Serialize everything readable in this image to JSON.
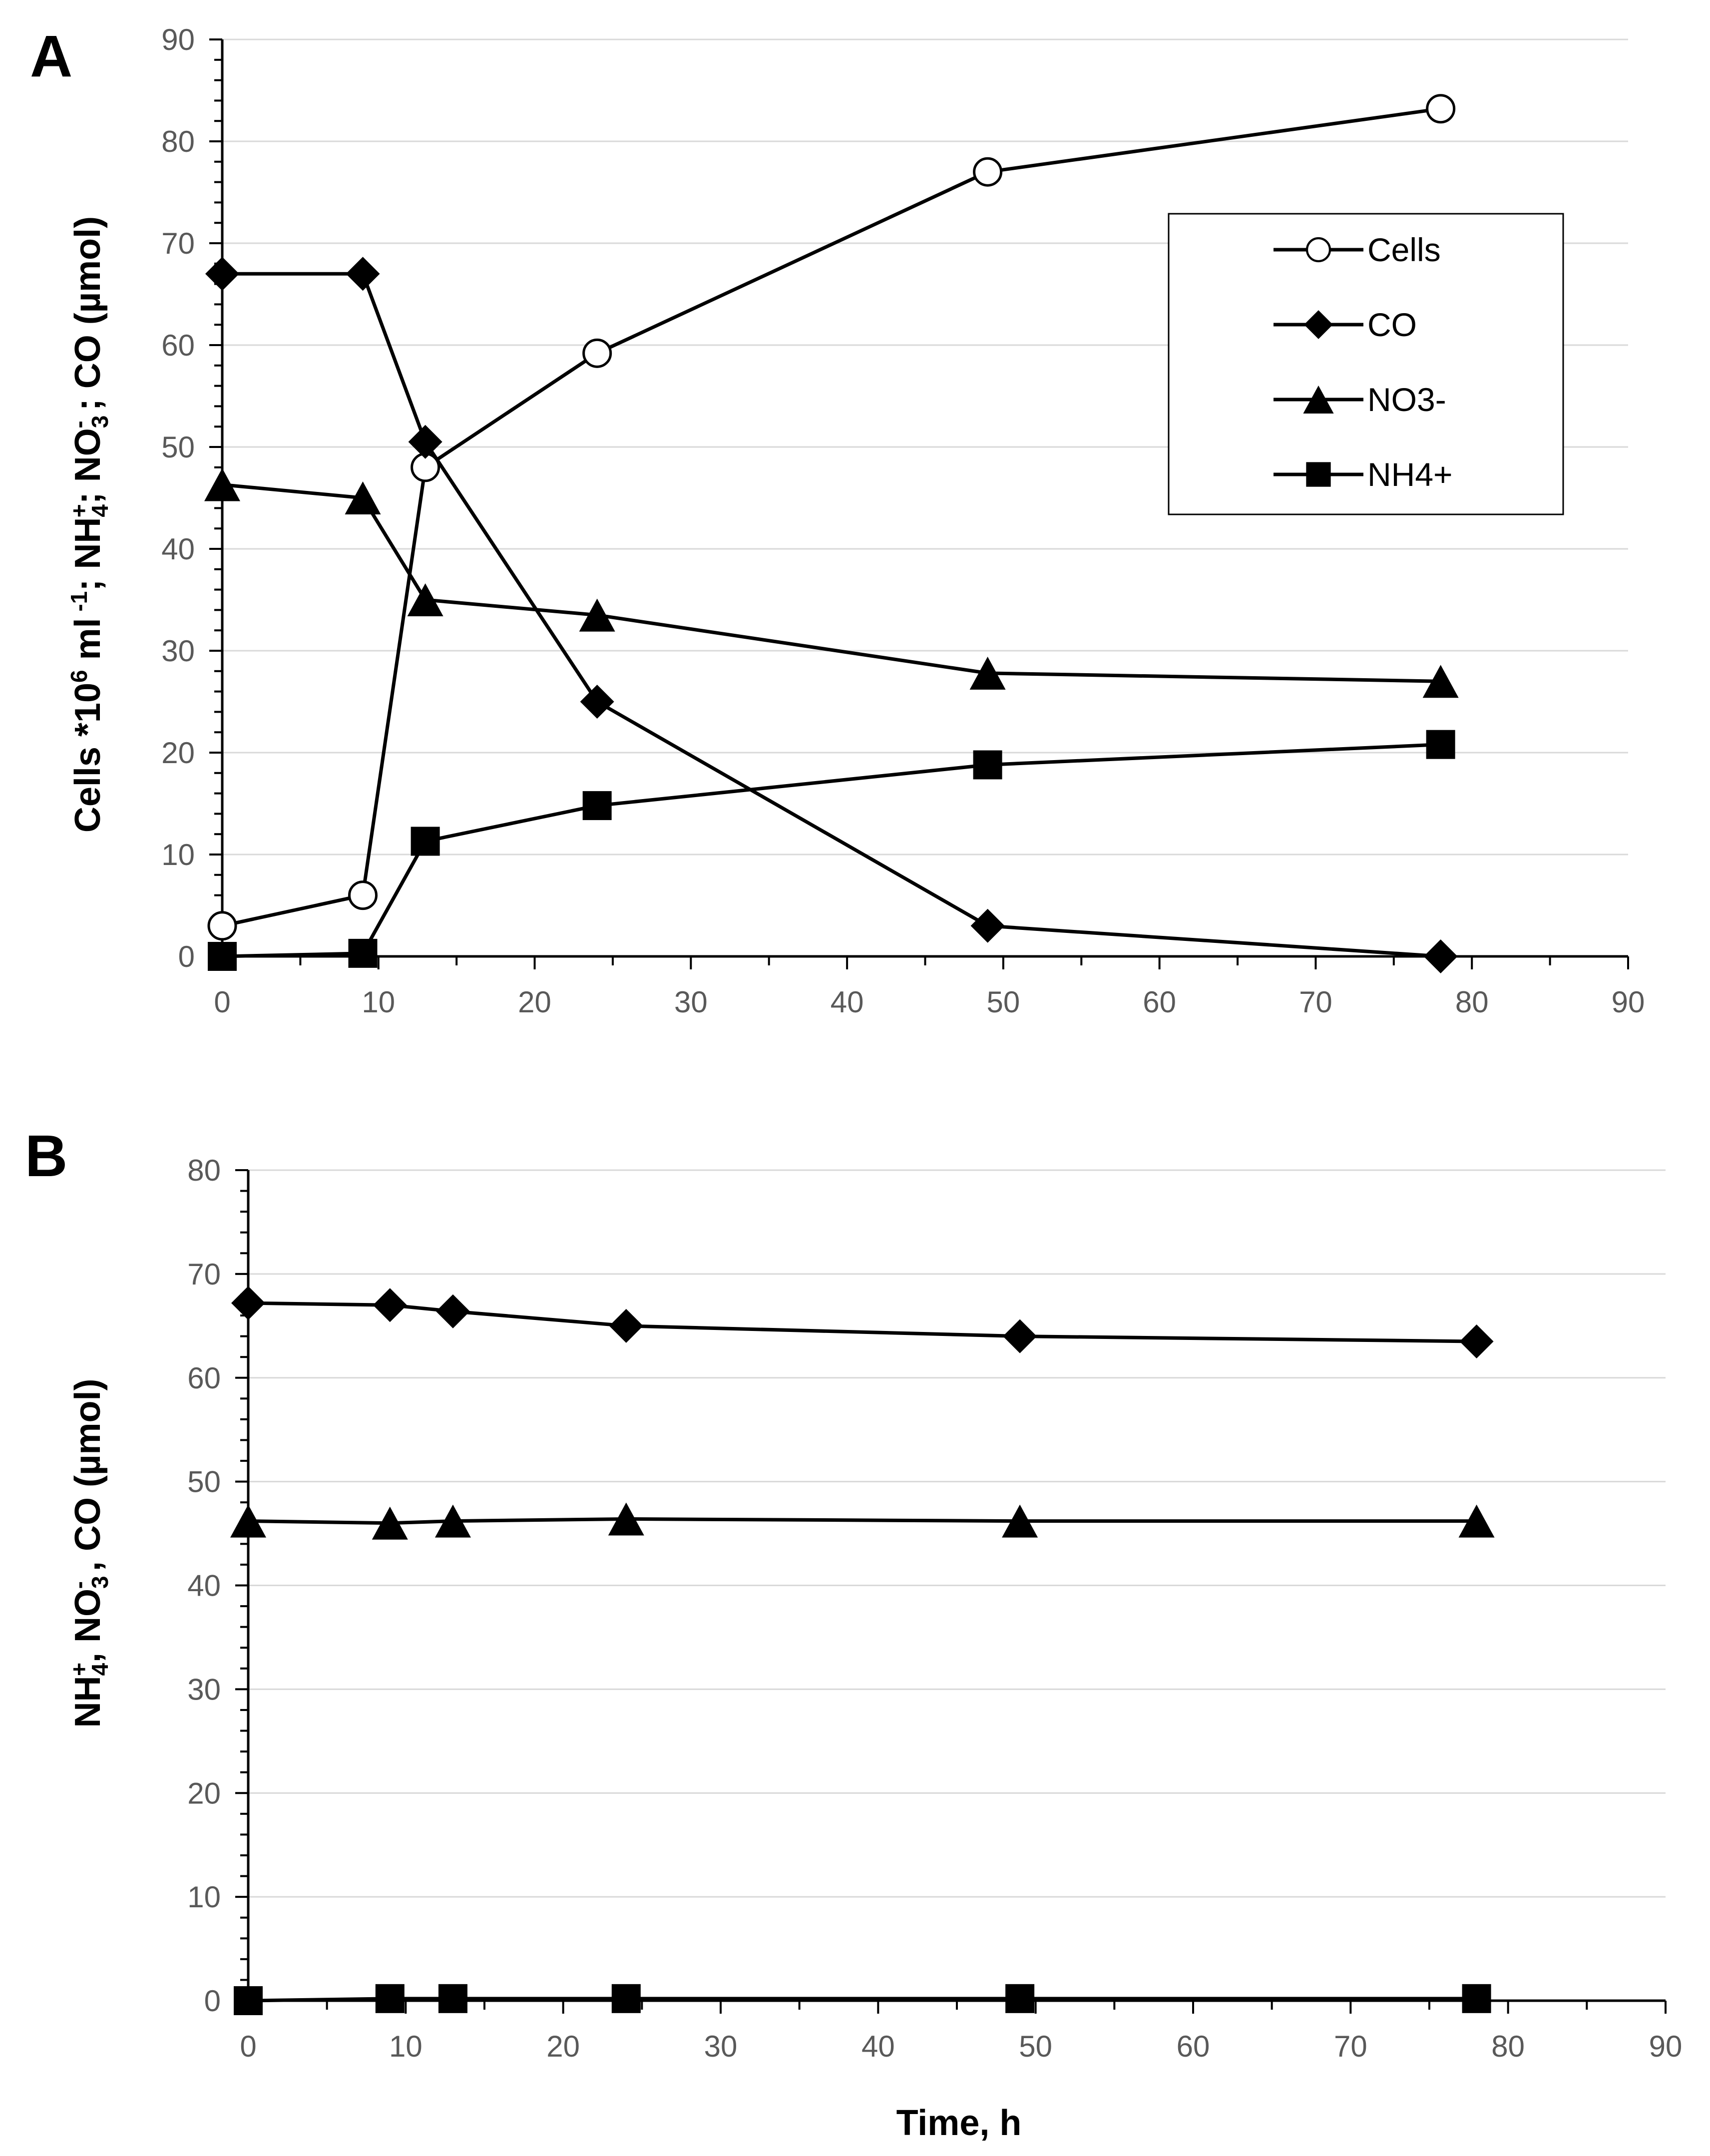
{
  "colors": {
    "line": "#000000",
    "grid": "#d9d9d9",
    "tick_label": "#595959",
    "background": "#ffffff"
  },
  "chart_data": [
    {
      "panel": "A",
      "type": "line",
      "ylabel": "Cells *10⁶ ml⁻¹; NH₄⁺; NO₃⁻; CO (µmol)",
      "ylabel_parts": [
        "Cells  *10",
        "6",
        " ml",
        " -1",
        "; NH",
        "4",
        "+",
        "; NO",
        "3",
        "-",
        " ; CO (µmol)"
      ],
      "xlabel": "",
      "xlim": [
        0,
        90
      ],
      "ylim": [
        0,
        90
      ],
      "x_ticks": [
        0,
        10,
        20,
        30,
        40,
        50,
        60,
        70,
        80,
        90
      ],
      "y_ticks": [
        0,
        10,
        20,
        30,
        40,
        50,
        60,
        70,
        80,
        90
      ],
      "grid": true,
      "legend_position": "upper-right",
      "series": [
        {
          "name": "Cells",
          "marker": "open-circle",
          "x": [
            0,
            9,
            13,
            24,
            49,
            78
          ],
          "values": [
            3,
            6,
            48,
            59.2,
            77,
            83.2
          ]
        },
        {
          "name": "CO",
          "marker": "diamond",
          "x": [
            0,
            9,
            13,
            24,
            49,
            78
          ],
          "values": [
            67,
            67,
            50.5,
            25,
            3,
            0
          ]
        },
        {
          "name": "NO3-",
          "marker": "triangle",
          "x": [
            0,
            9,
            13,
            24,
            49,
            78
          ],
          "values": [
            46.3,
            45,
            35,
            33.5,
            27.8,
            27
          ]
        },
        {
          "name": "NH4+",
          "marker": "square",
          "x": [
            0,
            9,
            13,
            24,
            49,
            78
          ],
          "values": [
            0,
            0.3,
            11.3,
            14.8,
            18.8,
            20.8
          ]
        }
      ]
    },
    {
      "panel": "B",
      "type": "line",
      "ylabel": "NH₄⁺, NO₃⁻, CO (µmol)",
      "ylabel_parts": [
        "NH",
        "4",
        "+",
        ", NO",
        "3",
        "-",
        " , CO (µmol)"
      ],
      "xlabel": "Time, h",
      "xlim": [
        0,
        90
      ],
      "ylim": [
        0,
        80
      ],
      "x_ticks": [
        0,
        10,
        20,
        30,
        40,
        50,
        60,
        70,
        80,
        90
      ],
      "y_ticks": [
        0,
        10,
        20,
        30,
        40,
        50,
        60,
        70,
        80
      ],
      "grid": true,
      "series": [
        {
          "name": "CO",
          "marker": "diamond",
          "x": [
            0,
            9,
            13,
            24,
            49,
            78
          ],
          "values": [
            67.2,
            67,
            66.4,
            65,
            64,
            63.5
          ]
        },
        {
          "name": "NO3-",
          "marker": "triangle",
          "x": [
            0,
            9,
            13,
            24,
            49,
            78
          ],
          "values": [
            46.2,
            46,
            46.2,
            46.4,
            46.2,
            46.2
          ]
        },
        {
          "name": "NH4+",
          "marker": "square",
          "x": [
            0,
            9,
            13,
            24,
            49,
            78
          ],
          "values": [
            0,
            0.2,
            0.2,
            0.2,
            0.2,
            0.2
          ]
        }
      ]
    }
  ]
}
